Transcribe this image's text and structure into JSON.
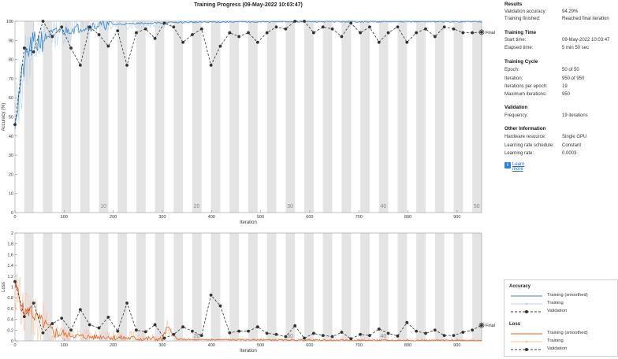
{
  "title": "Training Progress (09-May-2022 10:03:47)",
  "colors": {
    "training_acc": "#3a86c8",
    "training_acc_raw": "#b9d3ec",
    "training_loss": "#e2621f",
    "training_loss_raw": "#f4c4a7",
    "validation": "#333333",
    "epoch_band": "#e4e4e4",
    "link": "#2266cc"
  },
  "side": {
    "results": {
      "title": "Results",
      "rows": [
        {
          "k": "Validation accuracy:",
          "v": "94.29%"
        },
        {
          "k": "Training finished:",
          "v": "Reached final iteration"
        }
      ]
    },
    "training_time": {
      "title": "Training Time",
      "rows": [
        {
          "k": "Start time:",
          "v": "09-May-2022 10:03:47"
        },
        {
          "k": "Elapsed time:",
          "v": "5 min 50 sec"
        }
      ]
    },
    "training_cycle": {
      "title": "Training Cycle",
      "rows": [
        {
          "k": "Epoch:",
          "v": "50 of 50"
        },
        {
          "k": "Iteration:",
          "v": "950 of 950"
        },
        {
          "k": "Iterations per epoch:",
          "v": "19"
        },
        {
          "k": "Maximum iterations:",
          "v": "950"
        }
      ]
    },
    "validation": {
      "title": "Validation",
      "rows": [
        {
          "k": "Frequency:",
          "v": "19 iterations"
        }
      ]
    },
    "other": {
      "title": "Other Information",
      "rows": [
        {
          "k": "Hardware resource:",
          "v": "Single GPU"
        },
        {
          "k": "Learning rate schedule:",
          "v": "Constant"
        },
        {
          "k": "Learning rate:",
          "v": "0.0003"
        }
      ]
    },
    "learn_more": "Learn more",
    "learn_more_icon": "info-icon"
  },
  "legend": {
    "accuracy_title": "Accuracy",
    "loss_title": "Loss",
    "items_acc": [
      "Training (smoothed)",
      "Training",
      "Validation"
    ],
    "items_loss": [
      "Training (smoothed)",
      "Training",
      "Validation"
    ]
  },
  "chart_data": [
    {
      "type": "line",
      "title": "Training Progress (09-May-2022 10:03:47)",
      "xlabel": "Iteration",
      "ylabel": "Accuracy (%)",
      "xlim": [
        0,
        950
      ],
      "ylim": [
        0,
        100
      ],
      "xticks": [
        0,
        100,
        200,
        300,
        400,
        500,
        600,
        700,
        800,
        900
      ],
      "yticks": [
        0,
        10,
        20,
        30,
        40,
        50,
        60,
        70,
        80,
        90,
        100
      ],
      "epoch_labels": [
        {
          "epoch": "10",
          "iter": 180
        },
        {
          "epoch": "20",
          "iter": 370
        },
        {
          "epoch": "30",
          "iter": 560
        },
        {
          "epoch": "40",
          "iter": 750
        },
        {
          "epoch": "50",
          "iter": 940
        }
      ],
      "final_label": "Final",
      "validation": {
        "name": "Validation",
        "x": [
          0,
          19,
          38,
          57,
          76,
          95,
          114,
          133,
          152,
          171,
          190,
          209,
          228,
          247,
          266,
          285,
          304,
          323,
          342,
          361,
          380,
          399,
          418,
          437,
          456,
          475,
          494,
          513,
          532,
          551,
          570,
          589,
          608,
          627,
          646,
          665,
          684,
          703,
          722,
          741,
          760,
          779,
          798,
          817,
          836,
          855,
          874,
          893,
          912,
          931,
          950
        ],
        "y": [
          46,
          86,
          84,
          100,
          92,
          97,
          86,
          77,
          97,
          93,
          87,
          95,
          77,
          94,
          96,
          91,
          99,
          97,
          89,
          93,
          96,
          77,
          87,
          94,
          92,
          94,
          89,
          94,
          97,
          96,
          100,
          100,
          94,
          97,
          96,
          92,
          99,
          94,
          97,
          89,
          94,
          97,
          89,
          94,
          96,
          92,
          97,
          96,
          94,
          94,
          94.29
        ]
      },
      "training_smoothed": {
        "name": "Training (smoothed)",
        "x": [
          0,
          5,
          10,
          15,
          20,
          25,
          30,
          40,
          50,
          60,
          70,
          80,
          90,
          100,
          120,
          140,
          160,
          180,
          200,
          220,
          240,
          260,
          280,
          300,
          330,
          360,
          400,
          450,
          500,
          550,
          600,
          650,
          700,
          750,
          800,
          850,
          900,
          950
        ],
        "y": [
          50,
          55,
          64,
          72,
          78,
          82,
          86,
          88,
          90,
          91,
          93,
          94,
          95,
          95,
          96,
          97,
          97.5,
          98,
          98.3,
          98.5,
          98.8,
          99,
          99,
          99.2,
          99.4,
          99.5,
          99.6,
          99.7,
          99.7,
          99.8,
          99.8,
          99.8,
          99.8,
          99.8,
          99.8,
          99.8,
          99.8,
          99.8
        ]
      }
    },
    {
      "type": "line",
      "xlabel": "Iteration",
      "ylabel": "Loss",
      "xlim": [
        0,
        950
      ],
      "ylim": [
        0,
        2
      ],
      "xticks": [
        0,
        100,
        200,
        300,
        400,
        500,
        600,
        700,
        800,
        900
      ],
      "yticks": [
        0,
        0.2,
        0.4,
        0.6,
        0.8,
        1,
        1.2,
        1.4,
        1.6,
        1.8,
        2
      ],
      "epoch_labels": [
        {
          "epoch": "20",
          "iter": 370
        },
        {
          "epoch": "30",
          "iter": 560
        },
        {
          "epoch": "40",
          "iter": 750
        }
      ],
      "final_label": "Final",
      "validation": {
        "name": "Validation",
        "x": [
          0,
          19,
          38,
          57,
          76,
          95,
          114,
          133,
          152,
          171,
          190,
          209,
          228,
          247,
          266,
          285,
          304,
          323,
          342,
          361,
          380,
          399,
          418,
          437,
          456,
          475,
          494,
          513,
          532,
          551,
          570,
          589,
          608,
          627,
          646,
          665,
          684,
          703,
          722,
          741,
          760,
          779,
          798,
          817,
          836,
          855,
          874,
          893,
          912,
          931,
          950
        ],
        "y": [
          1.1,
          0.45,
          0.7,
          0.15,
          0.32,
          0.42,
          0.2,
          0.58,
          0.3,
          0.24,
          0.44,
          0.18,
          0.7,
          0.2,
          0.17,
          0.3,
          0.05,
          0.12,
          0.26,
          0.18,
          0.1,
          0.85,
          0.65,
          0.15,
          0.18,
          0.18,
          0.26,
          0.14,
          0.12,
          0.08,
          0.28,
          0.05,
          0.14,
          0.1,
          0.08,
          0.16,
          0.04,
          0.12,
          0.1,
          0.22,
          0.14,
          0.09,
          0.34,
          0.18,
          0.14,
          0.2,
          0.1,
          0.1,
          0.16,
          0.2,
          0.29
        ]
      },
      "training_smoothed": {
        "name": "Training (smoothed)",
        "x": [
          0,
          5,
          10,
          15,
          20,
          25,
          30,
          40,
          50,
          60,
          70,
          80,
          90,
          100,
          120,
          140,
          160,
          180,
          200,
          220,
          240,
          260,
          280,
          300,
          310,
          330,
          360,
          400,
          450,
          500,
          550,
          600,
          650,
          700,
          750,
          800,
          850,
          900,
          950
        ],
        "y": [
          1.0,
          0.95,
          0.75,
          0.6,
          0.55,
          0.52,
          0.58,
          0.45,
          0.4,
          0.3,
          0.22,
          0.16,
          0.14,
          0.12,
          0.1,
          0.08,
          0.07,
          0.08,
          0.06,
          0.05,
          0.05,
          0.04,
          0.04,
          0.03,
          0.25,
          0.03,
          0.02,
          0.02,
          0.02,
          0.02,
          0.015,
          0.015,
          0.01,
          0.01,
          0.01,
          0.01,
          0.01,
          0.01,
          0.01
        ]
      }
    }
  ]
}
